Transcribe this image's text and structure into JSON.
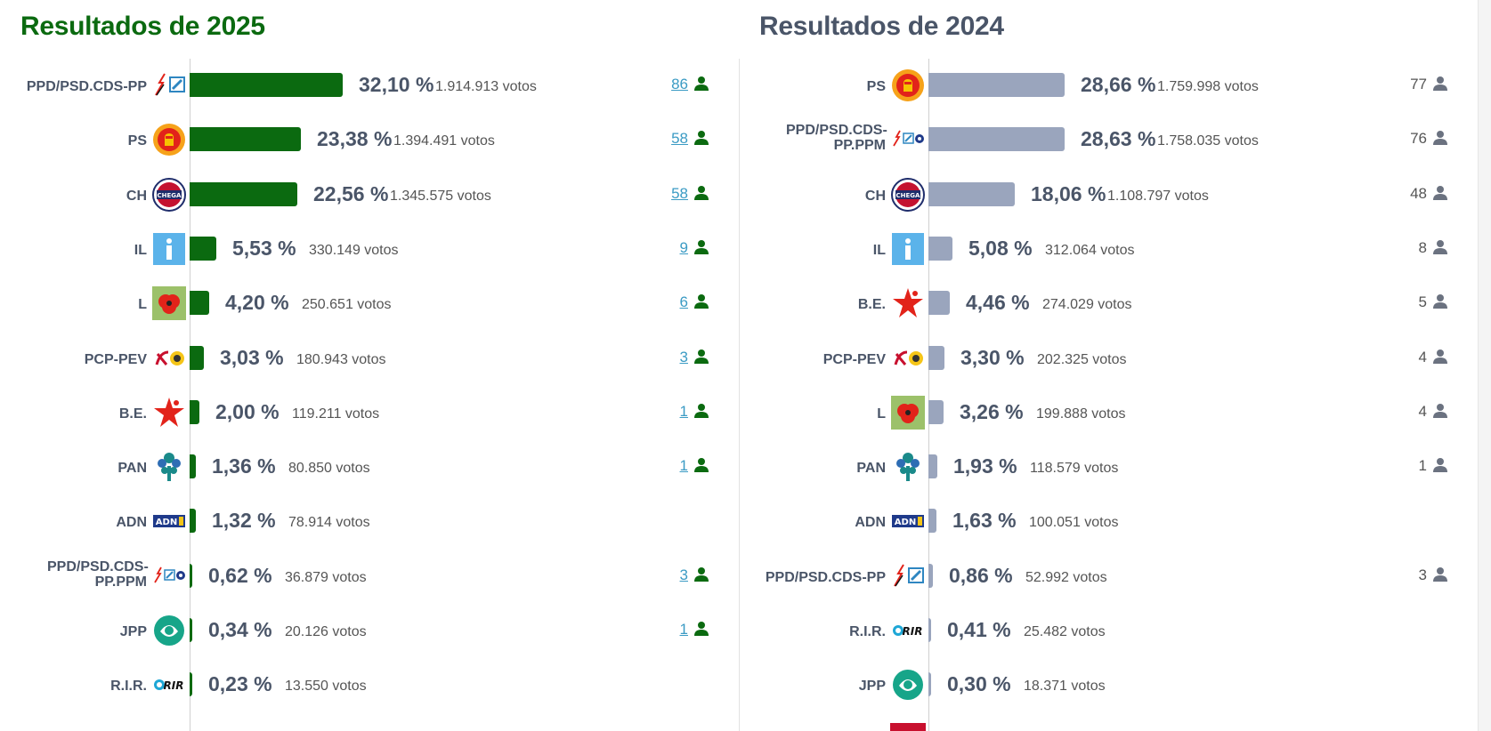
{
  "panels": [
    {
      "title": "Resultados de 2025",
      "title_color": "#0b6a10",
      "bar_color": "#0b6a10",
      "seat_icon_color": "#0b6a10",
      "seat_style": "link",
      "rows": [
        {
          "party": "PPD/PSD.CDS-PP",
          "logo": "psd-cds-logo",
          "pct": "32,10 %",
          "pct_value": 32.1,
          "votes": "1.914.913 votos",
          "seats": "86"
        },
        {
          "party": "PS",
          "logo": "ps-logo",
          "pct": "23,38 %",
          "pct_value": 23.38,
          "votes": "1.394.491 votos",
          "seats": "58"
        },
        {
          "party": "CH",
          "logo": "chega-logo",
          "pct": "22,56 %",
          "pct_value": 22.56,
          "votes": "1.345.575 votos",
          "seats": "58"
        },
        {
          "party": "IL",
          "logo": "il-logo",
          "pct": "5,53 %",
          "pct_value": 5.53,
          "votes": "330.149 votos",
          "seats": "9"
        },
        {
          "party": "L",
          "logo": "livre-logo",
          "pct": "4,20 %",
          "pct_value": 4.2,
          "votes": "250.651 votos",
          "seats": "6"
        },
        {
          "party": "PCP-PEV",
          "logo": "pcp-pev-logo",
          "pct": "3,03 %",
          "pct_value": 3.03,
          "votes": "180.943 votos",
          "seats": "3"
        },
        {
          "party": "B.E.",
          "logo": "be-logo",
          "pct": "2,00 %",
          "pct_value": 2.0,
          "votes": "119.211 votos",
          "seats": "1"
        },
        {
          "party": "PAN",
          "logo": "pan-logo",
          "pct": "1,36 %",
          "pct_value": 1.36,
          "votes": "80.850 votos",
          "seats": "1"
        },
        {
          "party": "ADN",
          "logo": "adn-logo",
          "pct": "1,32 %",
          "pct_value": 1.32,
          "votes": "78.914 votos",
          "seats": ""
        },
        {
          "party": "PPD/PSD.CDS-PP.PPM",
          "logo": "psd-cds-ppm-logo",
          "pct": "0,62 %",
          "pct_value": 0.62,
          "votes": "36.879 votos",
          "seats": "3"
        },
        {
          "party": "JPP",
          "logo": "jpp-logo",
          "pct": "0,34 %",
          "pct_value": 0.34,
          "votes": "20.126 votos",
          "seats": "1"
        },
        {
          "party": "R.I.R.",
          "logo": "rir-logo",
          "pct": "0,23 %",
          "pct_value": 0.23,
          "votes": "13.550 votos",
          "seats": ""
        }
      ]
    },
    {
      "title": "Resultados de 2024",
      "title_color": "#4a5568",
      "bar_color": "#9aa5bd",
      "seat_icon_color": "#6b7280",
      "seat_style": "plain",
      "rows": [
        {
          "party": "PS",
          "logo": "ps-logo",
          "pct": "28,66 %",
          "pct_value": 28.66,
          "votes": "1.759.998 votos",
          "seats": "77"
        },
        {
          "party": "PPD/PSD.CDS-PP.PPM",
          "logo": "psd-cds-ppm-logo",
          "pct": "28,63 %",
          "pct_value": 28.63,
          "votes": "1.758.035 votos",
          "seats": "76"
        },
        {
          "party": "CH",
          "logo": "chega-logo",
          "pct": "18,06 %",
          "pct_value": 18.06,
          "votes": "1.108.797 votos",
          "seats": "48"
        },
        {
          "party": "IL",
          "logo": "il-logo",
          "pct": "5,08 %",
          "pct_value": 5.08,
          "votes": "312.064 votos",
          "seats": "8"
        },
        {
          "party": "B.E.",
          "logo": "be-logo",
          "pct": "4,46 %",
          "pct_value": 4.46,
          "votes": "274.029 votos",
          "seats": "5"
        },
        {
          "party": "PCP-PEV",
          "logo": "pcp-pev-logo",
          "pct": "3,30 %",
          "pct_value": 3.3,
          "votes": "202.325 votos",
          "seats": "4"
        },
        {
          "party": "L",
          "logo": "livre-logo",
          "pct": "3,26 %",
          "pct_value": 3.26,
          "votes": "199.888 votos",
          "seats": "4"
        },
        {
          "party": "PAN",
          "logo": "pan-logo",
          "pct": "1,93 %",
          "pct_value": 1.93,
          "votes": "118.579 votos",
          "seats": "1"
        },
        {
          "party": "ADN",
          "logo": "adn-logo",
          "pct": "1,63 %",
          "pct_value": 1.63,
          "votes": "100.051 votos",
          "seats": ""
        },
        {
          "party": "PPD/PSD.CDS-PP",
          "logo": "psd-cds-logo",
          "pct": "0,86 %",
          "pct_value": 0.86,
          "votes": "52.992 votos",
          "seats": "3"
        },
        {
          "party": "R.I.R.",
          "logo": "rir-logo",
          "pct": "0,41 %",
          "pct_value": 0.41,
          "votes": "25.482 votos",
          "seats": ""
        },
        {
          "party": "JPP",
          "logo": "jpp-logo",
          "pct": "0,30 %",
          "pct_value": 0.3,
          "votes": "18.371 votos",
          "seats": ""
        }
      ]
    }
  ],
  "chart_data": [
    {
      "type": "bar",
      "orientation": "horizontal",
      "title": "Resultados de 2025",
      "categories": [
        "PPD/PSD.CDS-PP",
        "PS",
        "CH",
        "IL",
        "L",
        "PCP-PEV",
        "B.E.",
        "PAN",
        "ADN",
        "PPD/PSD.CDS-PP.PPM",
        "JPP",
        "R.I.R."
      ],
      "values": [
        32.1,
        23.38,
        22.56,
        5.53,
        4.2,
        3.03,
        2.0,
        1.36,
        1.32,
        0.62,
        0.34,
        0.23
      ],
      "votes": [
        1914913,
        1394491,
        1345575,
        330149,
        250651,
        180943,
        119211,
        80850,
        78914,
        36879,
        20126,
        13550
      ],
      "seats": [
        86,
        58,
        58,
        9,
        6,
        3,
        1,
        1,
        null,
        3,
        1,
        null
      ],
      "unit": "%"
    },
    {
      "type": "bar",
      "orientation": "horizontal",
      "title": "Resultados de 2024",
      "categories": [
        "PS",
        "PPD/PSD.CDS-PP.PPM",
        "CH",
        "IL",
        "B.E.",
        "PCP-PEV",
        "L",
        "PAN",
        "ADN",
        "PPD/PSD.CDS-PP",
        "R.I.R.",
        "JPP"
      ],
      "values": [
        28.66,
        28.63,
        18.06,
        5.08,
        4.46,
        3.3,
        3.26,
        1.93,
        1.63,
        0.86,
        0.41,
        0.3
      ],
      "votes": [
        1759998,
        1758035,
        1108797,
        312064,
        274029,
        202325,
        199888,
        118579,
        100051,
        52992,
        25482,
        18371
      ],
      "seats": [
        77,
        76,
        48,
        8,
        5,
        4,
        4,
        1,
        null,
        3,
        null,
        null
      ],
      "unit": "%"
    }
  ]
}
